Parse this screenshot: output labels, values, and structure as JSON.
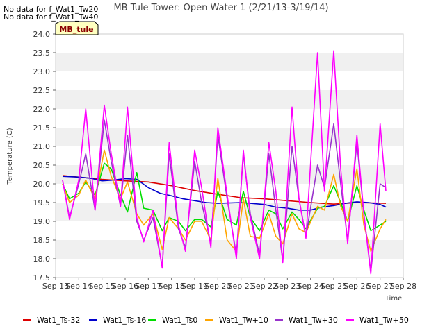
{
  "no_data_notes": [
    "No data for f_Wat1_Tw20",
    "No data for f_Wat1_Tw40"
  ],
  "site_badge": "MB_tule",
  "chart_data": {
    "type": "line",
    "title": "MB Tule Tower: Open Water 1 (2/21/13-3/19/14)",
    "xlabel": "Time",
    "ylabel": "Temperature (C)",
    "xlim": [
      13,
      28
    ],
    "ylim": [
      17.5,
      24.0
    ],
    "x_ticks": [
      13,
      14,
      15,
      16,
      17,
      18,
      19,
      20,
      21,
      22,
      23,
      24,
      25,
      26,
      27,
      28
    ],
    "x_tick_labels": [
      "Sep 13",
      "Sep 14",
      "Sep 15",
      "Sep 16",
      "Sep 17",
      "Sep 18",
      "Sep 19",
      "Sep 20",
      "Sep 21",
      "Sep 22",
      "Sep 23",
      "Sep 24",
      "Sep 25",
      "Sep 26",
      "Sep 27",
      "Sep 28"
    ],
    "y_ticks": [
      17.5,
      18.0,
      18.5,
      19.0,
      19.5,
      20.0,
      20.5,
      21.0,
      21.5,
      22.0,
      22.5,
      23.0,
      23.5,
      24.0
    ],
    "y_tick_labels": [
      "17.5",
      "18.0",
      "18.5",
      "19.0",
      "19.5",
      "20.0",
      "20.5",
      "21.0",
      "21.5",
      "22.0",
      "22.5",
      "23.0",
      "23.5",
      "24.0"
    ],
    "grid": "horizontal bands",
    "legend_position": "bottom",
    "series": [
      {
        "name": "Wat1_Ts-32",
        "color": "#dd0000",
        "x": [
          13.3,
          14,
          15,
          16,
          17,
          18,
          19,
          20,
          21,
          22,
          23,
          24,
          25,
          26,
          27.25
        ],
        "y": [
          20.22,
          20.18,
          20.12,
          20.08,
          20.05,
          19.95,
          19.82,
          19.72,
          19.63,
          19.6,
          19.55,
          19.5,
          19.46,
          19.5,
          19.48
        ]
      },
      {
        "name": "Wat1_Ts-16",
        "color": "#0000cc",
        "x": [
          13.3,
          14,
          14.5,
          15,
          15.5,
          16,
          16.5,
          17,
          17.5,
          18,
          18.5,
          19,
          19.5,
          20,
          21,
          22,
          22.5,
          23,
          23.5,
          24,
          24.5,
          25,
          25.5,
          26,
          26.5,
          27,
          27.25
        ],
        "y": [
          20.2,
          20.18,
          20.15,
          20.08,
          20.1,
          20.14,
          20.12,
          19.9,
          19.75,
          19.68,
          19.6,
          19.55,
          19.5,
          19.48,
          19.5,
          19.45,
          19.38,
          19.35,
          19.3,
          19.3,
          19.38,
          19.42,
          19.48,
          19.52,
          19.5,
          19.45,
          19.38
        ]
      },
      {
        "name": "Wat1_Ts0",
        "color": "#00dd00",
        "x": [
          13.3,
          13.6,
          14,
          14.3,
          14.7,
          15.1,
          15.4,
          15.8,
          16.1,
          16.5,
          16.8,
          17.2,
          17.6,
          17.9,
          18.3,
          18.6,
          19,
          19.3,
          19.7,
          20,
          20.4,
          20.8,
          21.1,
          21.4,
          21.8,
          22.2,
          22.5,
          22.8,
          23.2,
          23.5,
          23.8,
          24.3,
          24.6,
          25,
          25.3,
          25.6,
          26,
          26.3,
          26.6,
          27,
          27.25
        ],
        "y": [
          20.0,
          19.6,
          19.75,
          20.05,
          19.7,
          20.55,
          20.4,
          19.7,
          19.25,
          20.3,
          19.35,
          19.3,
          18.75,
          19.1,
          19.0,
          18.75,
          19.05,
          19.05,
          18.85,
          19.8,
          19.05,
          18.9,
          19.8,
          19.1,
          18.75,
          19.3,
          19.2,
          18.8,
          19.25,
          19.05,
          18.8,
          19.35,
          19.4,
          19.95,
          19.5,
          19.0,
          19.95,
          19.3,
          18.75,
          18.9,
          19.0
        ]
      },
      {
        "name": "Wat1_Tw+10",
        "color": "#ffa500",
        "x": [
          13.3,
          13.6,
          14,
          14.3,
          14.7,
          15.1,
          15.4,
          15.8,
          16.1,
          16.5,
          16.8,
          17.2,
          17.6,
          17.9,
          18.3,
          18.6,
          19,
          19.3,
          19.7,
          20,
          20.4,
          20.8,
          21.1,
          21.4,
          21.8,
          22.2,
          22.5,
          22.8,
          23.2,
          23.5,
          23.8,
          24.3,
          24.6,
          25,
          25.3,
          25.6,
          26,
          26.3,
          26.6,
          27,
          27.25
        ],
        "y": [
          20.0,
          19.5,
          19.7,
          20.1,
          19.6,
          20.9,
          20.2,
          19.6,
          20.05,
          19.2,
          18.9,
          19.2,
          18.25,
          19.1,
          18.8,
          18.5,
          19.0,
          19.0,
          18.5,
          20.15,
          18.5,
          18.2,
          19.6,
          18.6,
          18.55,
          19.2,
          18.6,
          18.4,
          19.2,
          18.8,
          18.7,
          19.4,
          19.3,
          20.25,
          19.4,
          19.0,
          20.4,
          18.9,
          18.2,
          18.8,
          19.05
        ]
      },
      {
        "name": "Wat1_Tw+30",
        "color": "#9933cc",
        "x": [
          13.3,
          13.6,
          14,
          14.3,
          14.7,
          15.1,
          15.4,
          15.8,
          16.1,
          16.5,
          16.8,
          17.2,
          17.6,
          17.9,
          18.3,
          18.6,
          19,
          19.3,
          19.7,
          20,
          20.4,
          20.8,
          21.1,
          21.4,
          21.8,
          22.2,
          22.5,
          22.8,
          23.2,
          23.5,
          23.8,
          24.3,
          24.6,
          25,
          25.3,
          25.6,
          26,
          26.3,
          26.6,
          27,
          27.25
        ],
        "y": [
          20.1,
          19.1,
          20.0,
          20.8,
          19.3,
          21.7,
          20.6,
          19.4,
          21.3,
          19.0,
          18.5,
          19.1,
          17.8,
          20.8,
          18.8,
          18.3,
          20.6,
          19.5,
          18.4,
          21.3,
          19.6,
          18.1,
          20.8,
          19.2,
          18.1,
          20.8,
          19.3,
          17.95,
          21.0,
          19.6,
          18.6,
          20.5,
          19.9,
          21.6,
          20.0,
          18.5,
          21.1,
          19.2,
          17.65,
          20.0,
          19.9
        ]
      },
      {
        "name": "Wat1_Tw+50",
        "color": "#ff00ff",
        "x": [
          13.3,
          13.6,
          14,
          14.3,
          14.7,
          15.1,
          15.4,
          15.8,
          16.1,
          16.5,
          16.8,
          17.2,
          17.6,
          17.9,
          18.3,
          18.6,
          19,
          19.3,
          19.7,
          20,
          20.4,
          20.8,
          21.1,
          21.4,
          21.8,
          22.2,
          22.5,
          22.8,
          23.2,
          23.5,
          23.8,
          24.3,
          24.6,
          25,
          25.3,
          25.6,
          26,
          26.3,
          26.6,
          27,
          27.25
        ],
        "y": [
          20.1,
          19.05,
          20.1,
          22.0,
          19.3,
          22.1,
          20.8,
          19.4,
          22.05,
          19.1,
          18.45,
          19.3,
          17.75,
          21.1,
          18.9,
          18.2,
          20.9,
          19.9,
          18.3,
          21.5,
          19.7,
          18.0,
          20.9,
          19.1,
          18.0,
          21.1,
          19.8,
          17.9,
          22.05,
          19.6,
          18.55,
          23.5,
          19.8,
          23.55,
          20.4,
          18.4,
          21.3,
          19.2,
          17.6,
          21.6,
          19.8
        ]
      }
    ]
  }
}
